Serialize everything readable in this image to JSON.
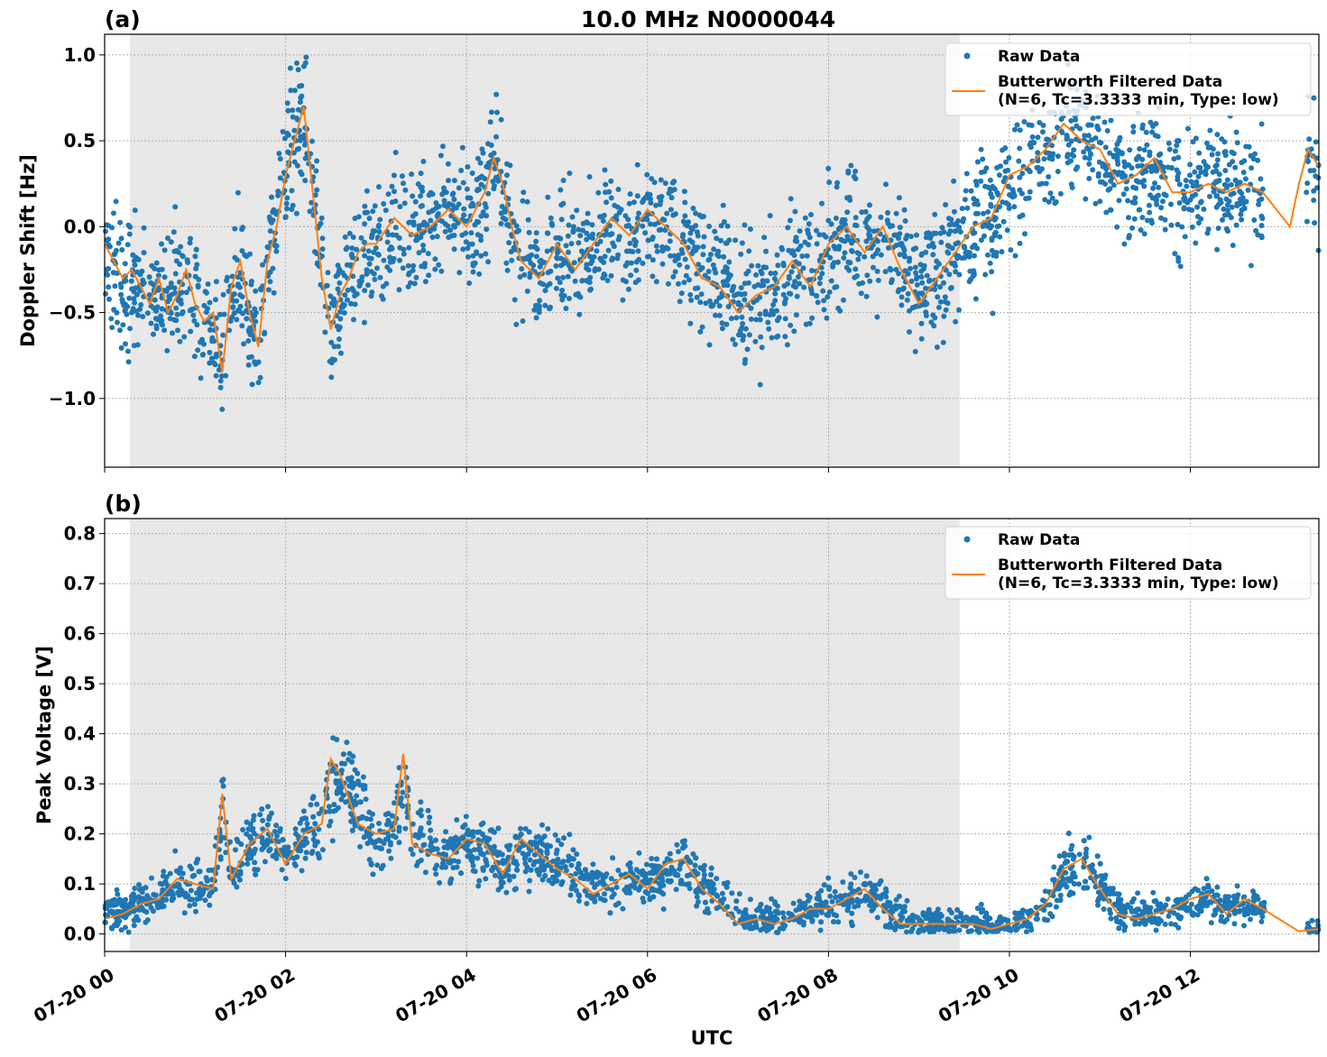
{
  "colors": {
    "raw": "#1f77b4",
    "filtered": "#ff7f0e",
    "shade": "#e8e8e8",
    "grid": "#b0b0b0"
  },
  "chart_data": [
    {
      "type": "scatter",
      "panel_label": "(a)",
      "title": "10.0 MHz N0000044",
      "xlabel": "",
      "ylabel": "Doppler Shift [Hz]",
      "x_unit": "hours since 07-20 00:00 UTC",
      "xlim": [
        0,
        13.42
      ],
      "ylim": [
        -1.4,
        1.12
      ],
      "yticks": [
        -1.0,
        -0.5,
        0.0,
        0.5,
        1.0
      ],
      "ytick_labels": [
        "−1.0",
        "−0.5",
        "0.0",
        "0.5",
        "1.0"
      ],
      "grid": true,
      "legend": "top-right",
      "shaded_region": [
        0.28,
        9.45
      ],
      "series": [
        {
          "name": "Raw Data",
          "kind": "scatter",
          "spread": 0.18,
          "points_x": [
            0.0,
            0.1,
            0.2,
            0.3,
            0.4,
            0.5,
            0.6,
            0.7,
            0.8,
            0.9,
            1.0,
            1.1,
            1.2,
            1.3,
            1.4,
            1.5,
            1.6,
            1.7,
            1.8,
            1.9,
            2.0,
            2.1,
            2.2,
            2.3,
            2.4,
            2.5,
            2.6,
            2.7,
            2.8,
            2.9,
            3.0,
            3.2,
            3.4,
            3.6,
            3.8,
            4.0,
            4.2,
            4.3,
            4.4,
            4.5,
            4.6,
            4.8,
            5.0,
            5.2,
            5.4,
            5.6,
            5.8,
            6.0,
            6.2,
            6.4,
            6.6,
            6.8,
            7.0,
            7.2,
            7.4,
            7.6,
            7.8,
            8.0,
            8.2,
            8.4,
            8.6,
            8.8,
            9.0,
            9.2,
            9.4,
            9.6,
            9.8,
            10.0,
            10.2,
            10.4,
            10.6,
            10.8,
            11.0,
            11.2,
            11.4,
            11.6,
            11.8,
            12.0,
            12.2,
            12.4,
            12.6,
            12.8,
            13.1,
            13.2,
            13.3,
            13.42
          ],
          "points_y": [
            -0.2,
            -0.25,
            -0.3,
            -0.3,
            -0.35,
            -0.4,
            -0.35,
            -0.45,
            -0.4,
            -0.3,
            -0.45,
            -0.55,
            -0.5,
            -0.8,
            -0.4,
            -0.3,
            -0.5,
            -0.65,
            -0.2,
            0.0,
            0.3,
            0.55,
            0.65,
            0.2,
            -0.3,
            -0.55,
            -0.4,
            -0.3,
            -0.2,
            -0.15,
            -0.1,
            0.0,
            -0.05,
            0.0,
            0.05,
            0.0,
            0.15,
            0.4,
            0.25,
            0.0,
            -0.2,
            -0.25,
            -0.15,
            -0.2,
            -0.15,
            0.0,
            -0.05,
            0.05,
            0.0,
            -0.1,
            -0.25,
            -0.3,
            -0.45,
            -0.4,
            -0.35,
            -0.25,
            -0.3,
            -0.15,
            -0.05,
            -0.1,
            -0.05,
            -0.2,
            -0.35,
            -0.3,
            -0.15,
            -0.05,
            0.05,
            0.25,
            0.35,
            0.45,
            0.55,
            0.5,
            0.45,
            0.3,
            0.3,
            0.35,
            0.2,
            0.2,
            0.25,
            0.2,
            0.25,
            0.2,
            -0.05,
            0.3,
            0.4,
            0.3
          ]
        },
        {
          "name": "Butterworth Filtered Data\n(N=6, Tc=3.3333 min, Type: low)",
          "kind": "line",
          "x": [
            0.0,
            0.1,
            0.2,
            0.3,
            0.4,
            0.5,
            0.6,
            0.7,
            0.8,
            0.9,
            1.0,
            1.1,
            1.2,
            1.3,
            1.4,
            1.5,
            1.6,
            1.7,
            1.8,
            1.9,
            2.0,
            2.1,
            2.2,
            2.3,
            2.4,
            2.5,
            2.6,
            2.7,
            2.8,
            2.9,
            3.0,
            3.2,
            3.4,
            3.6,
            3.8,
            4.0,
            4.2,
            4.3,
            4.4,
            4.5,
            4.6,
            4.8,
            5.0,
            5.2,
            5.4,
            5.6,
            5.8,
            6.0,
            6.2,
            6.4,
            6.6,
            6.8,
            7.0,
            7.2,
            7.4,
            7.6,
            7.8,
            8.0,
            8.2,
            8.4,
            8.6,
            8.8,
            9.0,
            9.2,
            9.4,
            9.6,
            9.8,
            10.0,
            10.2,
            10.4,
            10.6,
            10.8,
            11.0,
            11.2,
            11.4,
            11.6,
            11.8,
            12.0,
            12.2,
            12.4,
            12.6,
            12.8,
            13.1,
            13.2,
            13.3,
            13.42
          ],
          "y": [
            -0.1,
            -0.2,
            -0.3,
            -0.25,
            -0.35,
            -0.45,
            -0.3,
            -0.5,
            -0.4,
            -0.25,
            -0.45,
            -0.55,
            -0.5,
            -0.85,
            -0.35,
            -0.2,
            -0.5,
            -0.7,
            -0.2,
            0.0,
            0.3,
            0.5,
            0.7,
            0.2,
            -0.3,
            -0.6,
            -0.4,
            -0.3,
            -0.15,
            -0.1,
            -0.1,
            0.05,
            -0.05,
            0.0,
            0.1,
            0.0,
            0.2,
            0.4,
            0.25,
            0.0,
            -0.2,
            -0.3,
            -0.1,
            -0.25,
            -0.1,
            0.05,
            -0.05,
            0.1,
            0.0,
            -0.1,
            -0.3,
            -0.35,
            -0.5,
            -0.4,
            -0.35,
            -0.2,
            -0.35,
            -0.1,
            0.0,
            -0.15,
            0.0,
            -0.25,
            -0.45,
            -0.3,
            -0.15,
            0.0,
            0.05,
            0.3,
            0.35,
            0.45,
            0.6,
            0.5,
            0.45,
            0.25,
            0.3,
            0.4,
            0.2,
            0.2,
            0.25,
            0.2,
            0.25,
            0.2,
            -0.0,
            0.25,
            0.45,
            0.35
          ]
        }
      ]
    },
    {
      "type": "scatter",
      "panel_label": "(b)",
      "title": "",
      "xlabel": "UTC",
      "ylabel": "Peak Voltage [V]",
      "x_unit": "hours since 07-20 00:00 UTC",
      "xlim": [
        0,
        13.42
      ],
      "ylim": [
        -0.035,
        0.83
      ],
      "yticks": [
        0.0,
        0.1,
        0.2,
        0.3,
        0.4,
        0.5,
        0.6,
        0.7,
        0.8
      ],
      "ytick_labels": [
        "0.0",
        "0.1",
        "0.2",
        "0.3",
        "0.4",
        "0.5",
        "0.6",
        "0.7",
        "0.8"
      ],
      "xticks": [
        0,
        2,
        4,
        6,
        8,
        10,
        12
      ],
      "xtick_labels": [
        "07-20 00",
        "07-20 02",
        "07-20 04",
        "07-20 06",
        "07-20 08",
        "07-20 10",
        "07-20 12"
      ],
      "grid": true,
      "legend": "top-right",
      "shaded_region": [
        0.28,
        9.45
      ],
      "series": [
        {
          "name": "Raw Data",
          "kind": "scatter",
          "spread": 0.05,
          "points_x": [
            0.0,
            0.2,
            0.4,
            0.6,
            0.8,
            1.0,
            1.2,
            1.3,
            1.4,
            1.6,
            1.8,
            2.0,
            2.2,
            2.4,
            2.5,
            2.6,
            2.8,
            3.0,
            3.2,
            3.3,
            3.4,
            3.6,
            3.8,
            4.0,
            4.2,
            4.4,
            4.6,
            4.8,
            5.0,
            5.2,
            5.4,
            5.6,
            5.8,
            6.0,
            6.2,
            6.4,
            6.6,
            6.8,
            7.0,
            7.2,
            7.4,
            7.6,
            7.8,
            8.0,
            8.2,
            8.4,
            8.6,
            8.8,
            9.0,
            9.2,
            9.4,
            9.6,
            9.8,
            10.0,
            10.2,
            10.4,
            10.6,
            10.8,
            11.0,
            11.2,
            11.4,
            11.6,
            11.8,
            12.0,
            12.2,
            12.4,
            12.6,
            12.8,
            13.2,
            13.42
          ],
          "points_y": [
            0.04,
            0.05,
            0.06,
            0.08,
            0.1,
            0.1,
            0.09,
            0.25,
            0.12,
            0.17,
            0.2,
            0.15,
            0.19,
            0.22,
            0.3,
            0.33,
            0.25,
            0.2,
            0.22,
            0.3,
            0.2,
            0.17,
            0.15,
            0.18,
            0.17,
            0.13,
            0.17,
            0.16,
            0.14,
            0.12,
            0.1,
            0.09,
            0.11,
            0.1,
            0.12,
            0.14,
            0.1,
            0.08,
            0.04,
            0.03,
            0.03,
            0.03,
            0.05,
            0.06,
            0.07,
            0.08,
            0.06,
            0.04,
            0.02,
            0.02,
            0.02,
            0.02,
            0.015,
            0.02,
            0.03,
            0.06,
            0.12,
            0.14,
            0.1,
            0.05,
            0.04,
            0.04,
            0.05,
            0.06,
            0.07,
            0.05,
            0.06,
            0.05,
            0.01,
            0.01
          ]
        },
        {
          "name": "Butterworth Filtered Data\n(N=6, Tc=3.3333 min, Type: low)",
          "kind": "line",
          "x": [
            0.0,
            0.2,
            0.4,
            0.6,
            0.8,
            1.0,
            1.2,
            1.3,
            1.4,
            1.6,
            1.8,
            2.0,
            2.2,
            2.4,
            2.5,
            2.6,
            2.8,
            3.0,
            3.2,
            3.3,
            3.4,
            3.6,
            3.8,
            4.0,
            4.2,
            4.4,
            4.6,
            4.8,
            5.0,
            5.2,
            5.4,
            5.6,
            5.8,
            6.0,
            6.2,
            6.4,
            6.6,
            6.8,
            7.0,
            7.2,
            7.4,
            7.6,
            7.8,
            8.0,
            8.2,
            8.4,
            8.6,
            8.8,
            9.0,
            9.2,
            9.4,
            9.6,
            9.8,
            10.0,
            10.2,
            10.4,
            10.6,
            10.8,
            11.0,
            11.2,
            11.4,
            11.6,
            11.8,
            12.0,
            12.2,
            12.4,
            12.6,
            12.8,
            13.2,
            13.42
          ],
          "y": [
            0.03,
            0.04,
            0.06,
            0.07,
            0.11,
            0.1,
            0.09,
            0.28,
            0.11,
            0.18,
            0.21,
            0.14,
            0.2,
            0.22,
            0.35,
            0.32,
            0.22,
            0.2,
            0.21,
            0.36,
            0.18,
            0.16,
            0.15,
            0.19,
            0.18,
            0.12,
            0.19,
            0.16,
            0.13,
            0.11,
            0.08,
            0.1,
            0.12,
            0.09,
            0.14,
            0.15,
            0.09,
            0.06,
            0.02,
            0.03,
            0.02,
            0.03,
            0.05,
            0.05,
            0.07,
            0.09,
            0.05,
            0.02,
            0.02,
            0.02,
            0.02,
            0.02,
            0.01,
            0.02,
            0.03,
            0.06,
            0.13,
            0.15,
            0.09,
            0.04,
            0.03,
            0.04,
            0.05,
            0.07,
            0.08,
            0.04,
            0.07,
            0.05,
            0.005,
            0.01
          ]
        }
      ]
    }
  ]
}
